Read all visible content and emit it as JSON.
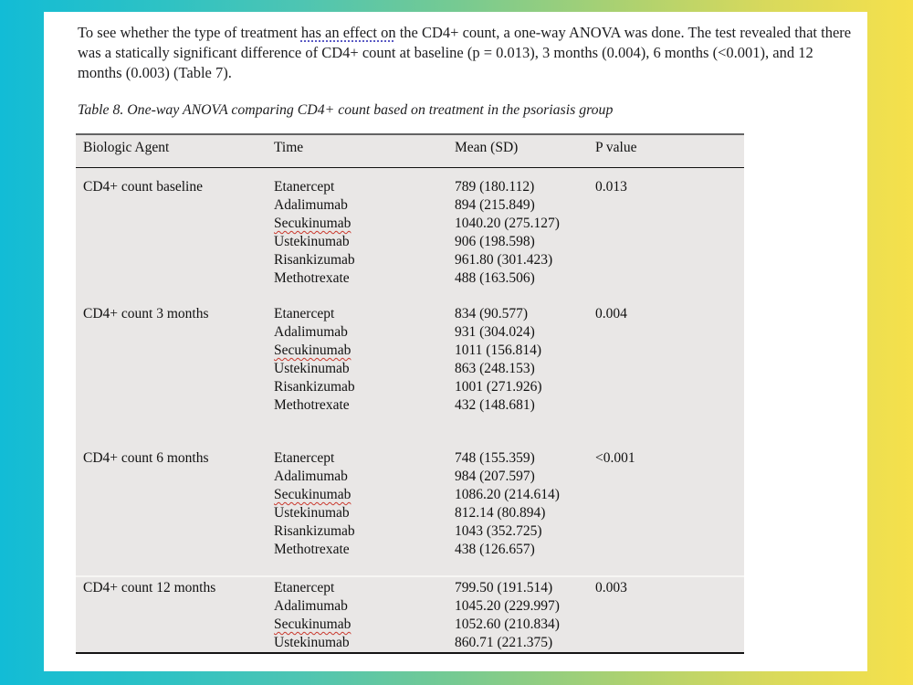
{
  "document": {
    "paragraph": {
      "before": "To see whether the type of treatment ",
      "grammar_flagged": "has an effect on",
      "after": " the CD4+ count, a one-way ANOVA was done. The test revealed that there was a statically significant difference of CD4+ count at baseline (p = 0.013), 3 months (0.004), 6 months (<0.001), and 12 months (0.003) (Table 7)."
    },
    "table_caption": "Table 8. One-way ANOVA comparing CD4+ count based on treatment in the psoriasis group",
    "table": {
      "headers": [
        "Biologic Agent",
        "Time",
        "Mean (SD)",
        "P value"
      ],
      "sections": [
        {
          "label": "CD4+ count baseline",
          "p_value": "0.013",
          "rows": [
            {
              "treatment": "Etanercept",
              "mean_sd": "789 (180.112)"
            },
            {
              "treatment": "Adalimumab",
              "mean_sd": "894 (215.849)"
            },
            {
              "treatment": "Secukinumab",
              "mean_sd": "1040.20 (275.127)"
            },
            {
              "treatment": "Ustekinumab",
              "mean_sd": "906 (198.598)"
            },
            {
              "treatment": "Risankizumab",
              "mean_sd": "961.80 (301.423)"
            },
            {
              "treatment": "Methotrexate",
              "mean_sd": "488 (163.506)"
            }
          ]
        },
        {
          "label": "CD4+ count 3 months",
          "p_value": "0.004",
          "rows": [
            {
              "treatment": "Etanercept",
              "mean_sd": "834 (90.577)"
            },
            {
              "treatment": "Adalimumab",
              "mean_sd": "931 (304.024)"
            },
            {
              "treatment": "Secukinumab",
              "mean_sd": "1011 (156.814)"
            },
            {
              "treatment": "Ustekinumab",
              "mean_sd": "863 (248.153)"
            },
            {
              "treatment": "Risankizumab",
              "mean_sd": "1001 (271.926)"
            },
            {
              "treatment": "Methotrexate",
              "mean_sd": "432 (148.681)"
            }
          ]
        },
        {
          "label": "CD4+ count 6 months",
          "p_value": "<0.001",
          "rows": [
            {
              "treatment": "Etanercept",
              "mean_sd": "748 (155.359)"
            },
            {
              "treatment": "Adalimumab",
              "mean_sd": "984 (207.597)"
            },
            {
              "treatment": "Secukinumab",
              "mean_sd": "1086.20 (214.614)"
            },
            {
              "treatment": "Ustekinumab",
              "mean_sd": "812.14 (80.894)"
            },
            {
              "treatment": "Risankizumab",
              "mean_sd": "1043 (352.725)"
            },
            {
              "treatment": "Methotrexate",
              "mean_sd": "438 (126.657)"
            }
          ]
        },
        {
          "label": "CD4+ count 12 months",
          "p_value": "0.003",
          "rows": [
            {
              "treatment": "Etanercept",
              "mean_sd": "799.50 (191.514)"
            },
            {
              "treatment": "Adalimumab",
              "mean_sd": "1045.20 (229.997)"
            },
            {
              "treatment": "Secukinumab",
              "mean_sd": "1052.60 (210.834)"
            },
            {
              "treatment": "Ustekinumab",
              "mean_sd": "860.71 (221.375)"
            }
          ]
        }
      ]
    }
  },
  "colors": {
    "border_gradient_start": "#12bcd6",
    "border_gradient_end": "#f6e14b",
    "table_background": "#e9e7e6",
    "spellcheck_underline": "#c9372c",
    "grammar_underline": "#5a5ac4"
  }
}
